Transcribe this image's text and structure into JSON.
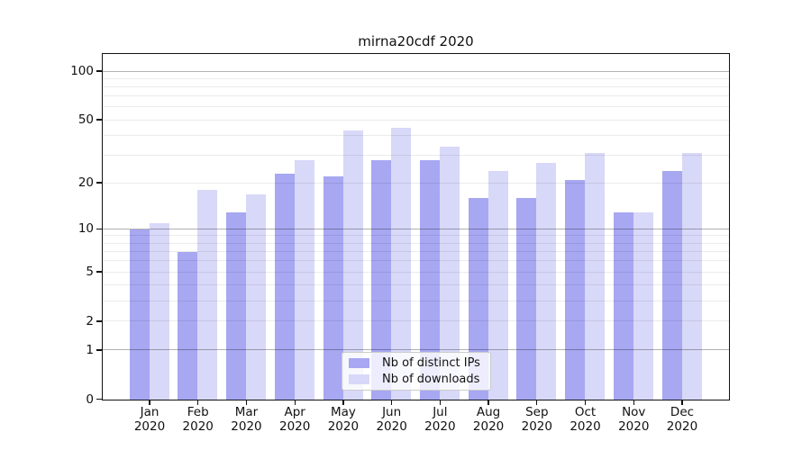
{
  "window": {
    "background": "#ffffff"
  },
  "chart_data": {
    "type": "bar",
    "title": "mirna20cdf 2020",
    "categories": [
      "Jan",
      "Feb",
      "Mar",
      "Apr",
      "May",
      "Jun",
      "Jul",
      "Aug",
      "Sep",
      "Oct",
      "Nov",
      "Dec"
    ],
    "category_year": "2020",
    "series": [
      {
        "name": "Nb of distinct IPs",
        "color": "#a7a7f2",
        "values": [
          10,
          7,
          13,
          23,
          22,
          28,
          28,
          16,
          16,
          21,
          13,
          24
        ]
      },
      {
        "name": "Nb of downloads",
        "color": "#d8d8f8",
        "values": [
          11,
          18,
          17,
          28,
          43,
          45,
          34,
          24,
          27,
          31,
          13,
          31
        ]
      }
    ],
    "y_axis": {
      "scale": "log1p",
      "labeled_ticks": [
        0,
        1,
        2,
        5,
        10,
        20,
        50,
        100
      ],
      "minor_gridlines": [
        3,
        4,
        6,
        7,
        8,
        9,
        30,
        40,
        60,
        70,
        80,
        90
      ],
      "emphasized_gridlines": [
        1,
        10,
        100
      ],
      "max": 100
    },
    "grid": true,
    "legend_position": "bottom-center"
  },
  "colors": {
    "axis": "#111111",
    "grid_major": "rgba(0,0,0,0.30)",
    "grid_minor": "rgba(0,0,0,0.08)",
    "legend_border": "#cccccc",
    "legend_background": "rgba(255,255,255,0.8)",
    "text": "#111111"
  }
}
